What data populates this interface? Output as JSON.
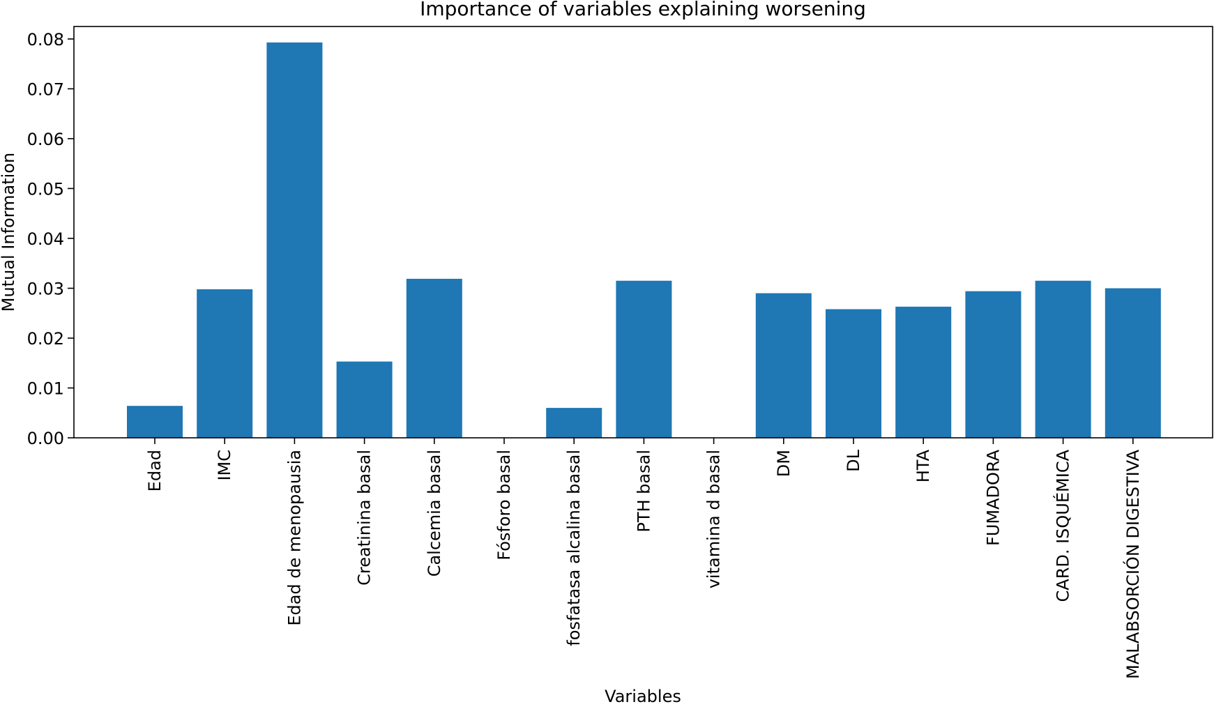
{
  "chart_data": {
    "type": "bar",
    "title": "Importance of variables explaining worsening",
    "xlabel": "Variables",
    "ylabel": "Mutual Information",
    "categories": [
      "Edad",
      "IMC",
      "Edad de menopausia",
      "Creatinina basal",
      "Calcemia basal",
      "Fósforo basal",
      "fosfatasa alcalina basal",
      "PTH basal",
      "vitamina d basal",
      "DM",
      "DL",
      "HTA",
      "FUMADORA",
      "CARD. ISQUÉMICA",
      "MALABSORCIÓN DIGESTIVA"
    ],
    "values": [
      0.0064,
      0.0298,
      0.0793,
      0.0153,
      0.0319,
      0.0,
      0.006,
      0.0315,
      0.0,
      0.029,
      0.0258,
      0.0263,
      0.0294,
      0.0315,
      0.03
    ],
    "ylim": [
      0,
      0.0825
    ],
    "yticks": [
      "0.00",
      "0.01",
      "0.02",
      "0.03",
      "0.04",
      "0.05",
      "0.06",
      "0.07",
      "0.08"
    ],
    "ytick_values": [
      0,
      0.01,
      0.02,
      0.03,
      0.04,
      0.05,
      0.06,
      0.07,
      0.08
    ],
    "bar_color": "#1f77b4",
    "grid": false,
    "legend": "none"
  }
}
